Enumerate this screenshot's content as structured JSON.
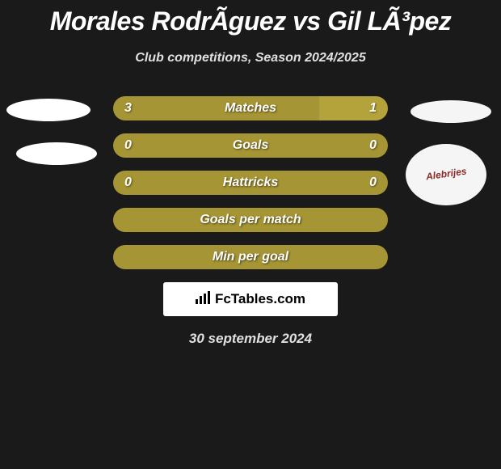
{
  "title": "Morales RodrÃ­guez vs Gil LÃ³pez",
  "subtitle": "Club competitions, Season 2024/2025",
  "colors": {
    "background": "#1a1a1a",
    "bar_olive": "#a69534",
    "bar_olive_light": "#b4a23a",
    "text_white": "#ffffff",
    "text_light": "#e0e0e0",
    "branding_bg": "#ffffff",
    "branding_text": "#000000"
  },
  "rows": [
    {
      "label": "Matches",
      "left_value": "3",
      "right_value": "1",
      "left_pct": 75,
      "right_pct": 25,
      "left_color": "#a69534",
      "right_color": "#b4a23a"
    },
    {
      "label": "Goals",
      "left_value": "0",
      "right_value": "0",
      "left_pct": 100,
      "right_pct": 0,
      "left_color": "#a69534",
      "right_color": "#a69534"
    },
    {
      "label": "Hattricks",
      "left_value": "0",
      "right_value": "0",
      "left_pct": 100,
      "right_pct": 0,
      "left_color": "#a69534",
      "right_color": "#a69534"
    },
    {
      "label": "Goals per match",
      "left_value": "",
      "right_value": "",
      "left_pct": 100,
      "right_pct": 0,
      "left_color": "#a69534",
      "right_color": "#a69534"
    },
    {
      "label": "Min per goal",
      "left_value": "",
      "right_value": "",
      "left_pct": 100,
      "right_pct": 0,
      "left_color": "#a69534",
      "right_color": "#a69534"
    }
  ],
  "branding": {
    "text": "FcTables.com"
  },
  "date": "30 september 2024",
  "right_logo_text": "Alebrijes"
}
